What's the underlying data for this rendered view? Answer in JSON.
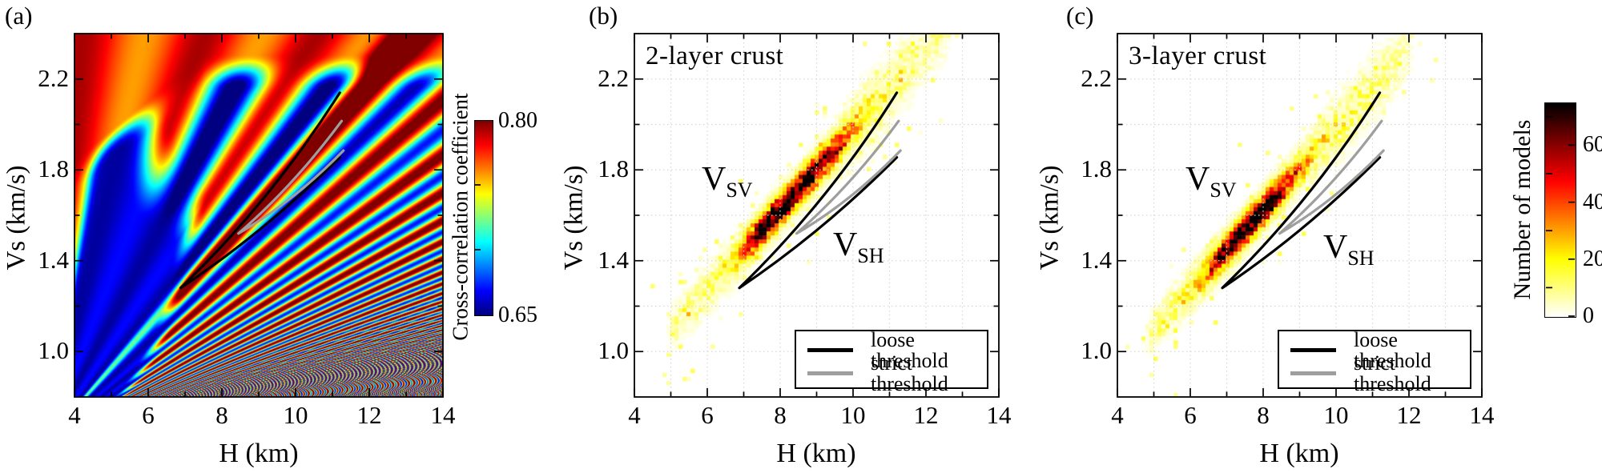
{
  "panels": [
    {
      "id": "a",
      "label": "(a)",
      "title": "",
      "type": "heatmap"
    },
    {
      "id": "b",
      "label": "(b)",
      "title": "2-layer crust",
      "type": "histogram2d"
    },
    {
      "id": "c",
      "label": "(c)",
      "title": "3-layer crust",
      "type": "histogram2d"
    }
  ],
  "axes": {
    "x": {
      "label": "H (km)",
      "range": [
        4,
        14
      ],
      "major_ticks": [
        {
          "value": 4,
          "label": "4"
        },
        {
          "value": 6,
          "label": "6"
        },
        {
          "value": 8,
          "label": "8"
        },
        {
          "value": 10,
          "label": "10"
        },
        {
          "value": 12,
          "label": "12"
        },
        {
          "value": 14,
          "label": "14"
        }
      ],
      "minor_step": 1
    },
    "y": {
      "label": "Vs (km/s)",
      "range": [
        0.8,
        2.4
      ],
      "major_ticks": [
        {
          "value": 2.2,
          "label": "2.2"
        },
        {
          "value": 1.8,
          "label": "1.8"
        },
        {
          "value": 1.4,
          "label": "1.4"
        },
        {
          "value": 1.0,
          "label": "1.0"
        }
      ],
      "minor_step": 0.2
    }
  },
  "colorbars": {
    "cc": {
      "label": "Cross-correlation coefficient",
      "max_label": "0.80",
      "min_label": "0.65",
      "range": [
        0.65,
        0.8
      ],
      "minor_ticks": [
        0.75,
        0.7
      ],
      "colormap": "jet"
    },
    "models": {
      "label": "Number of models",
      "range": [
        0,
        75
      ],
      "ticks": [
        {
          "value": 60,
          "label": "60"
        },
        {
          "value": 40,
          "label": "40"
        },
        {
          "value": 20,
          "label": "20"
        },
        {
          "value": 0,
          "label": "0"
        }
      ],
      "minor_ticks": [
        70,
        50,
        30,
        10
      ],
      "colormap": "hot reversed (white-yellow-red-black)"
    }
  },
  "legend": {
    "entries": [
      {
        "label": "loose threshold",
        "color": "#000000"
      },
      {
        "label": "strict threshold",
        "color": "#9e9e9e"
      }
    ]
  },
  "annotations": {
    "vsv": {
      "main": "V",
      "sub": "SV"
    },
    "vsh": {
      "main": "V",
      "sub": "SH"
    }
  },
  "contours": {
    "loose": {
      "name": "loose threshold",
      "color": "#000000",
      "tip": [
        6.88,
        1.28
      ],
      "upper_end": [
        11.2,
        2.14
      ],
      "upper_ctrl": [
        9.35,
        1.665
      ],
      "lower_end": [
        11.2,
        1.855
      ],
      "lower_ctrl": [
        9.15,
        1.525
      ]
    },
    "strict": {
      "name": "strict threshold",
      "color": "#9e9e9e",
      "tip": [
        8.45,
        1.52
      ],
      "upper_end": [
        11.25,
        2.015
      ],
      "upper_ctrl": [
        9.95,
        1.73
      ],
      "lower_end": [
        11.3,
        1.885
      ],
      "lower_ctrl": [
        9.95,
        1.66
      ]
    }
  },
  "chart_data": [
    {
      "type": "heatmap",
      "panel": "(a)",
      "xlabel": "H (km)",
      "ylabel": "Vs (km/s)",
      "xlim": [
        4,
        14
      ],
      "ylim": [
        0.8,
        2.4
      ],
      "x_ticks": [
        4,
        6,
        8,
        10,
        12,
        14
      ],
      "y_ticks": [
        1.0,
        1.4,
        1.8,
        2.2
      ],
      "value_label": "Cross-correlation coefficient",
      "value_range": [
        0.65,
        0.8
      ],
      "colormap": "jet",
      "pattern_description": "Interference fan: solid high-correlation red field (~0.80) along the top, deep-blue low-correlation lobe (0.65) in the lower left, alternating warm/cool rays fanning out from near (H=3.3, Vs=0.62) that become very finely striped toward the lower right, and a dark-red correlation-maximum ridge of slope ~0.18 (km/s)/km running from about (6.9,1.28) to (11.2,2.1) inside the picked threshold contours.",
      "ridge": {
        "origin": [
          3.3,
          0.62
        ],
        "slope": 0.183
      },
      "contours": [
        {
          "name": "loose threshold",
          "color": "black",
          "tip": [
            6.88,
            1.28
          ],
          "upper_end": [
            11.2,
            2.14
          ],
          "lower_end": [
            11.2,
            1.855
          ]
        },
        {
          "name": "strict threshold",
          "color": "gray",
          "tip": [
            8.45,
            1.52
          ],
          "upper_end": [
            11.25,
            2.015
          ],
          "lower_end": [
            11.3,
            1.885
          ]
        }
      ]
    },
    {
      "type": "histogram2d",
      "panel": "(b)",
      "title": "2-layer crust",
      "xlabel": "H (km)",
      "ylabel": "Vs (km/s)",
      "xlim": [
        4,
        14
      ],
      "ylim": [
        0.8,
        2.4
      ],
      "count_label": "Number of models",
      "count_range": [
        0,
        75
      ],
      "band": {
        "slope": 0.177,
        "intercept": 0.208,
        "h_extent": [
          4.75,
          12.35
        ],
        "vs_sigma": 0.06
      },
      "hotspots": [
        {
          "h": 8.75,
          "vs": 1.76,
          "peak_count": 70,
          "h_sigma": 0.8
        },
        {
          "h": 7.55,
          "vs": 1.55,
          "peak_count": 52,
          "h_sigma": 0.45
        }
      ],
      "labels": [
        {
          "text": "V_SV",
          "h": 6.4,
          "vs": 1.73
        },
        {
          "text": "V_SH",
          "h": 10.0,
          "vs": 1.44
        }
      ],
      "legend": [
        "loose threshold",
        "strict threshold"
      ]
    },
    {
      "type": "histogram2d",
      "panel": "(c)",
      "title": "3-layer crust",
      "xlabel": "H (km)",
      "ylabel": "Vs (km/s)",
      "xlim": [
        4,
        14
      ],
      "ylim": [
        0.8,
        2.4
      ],
      "count_label": "Number of models",
      "count_range": [
        0,
        75
      ],
      "band": {
        "slope": 0.177,
        "intercept": 0.208,
        "h_extent": [
          4.6,
          11.75
        ],
        "vs_sigma": 0.06
      },
      "hotspots": [
        {
          "h": 7.35,
          "vs": 1.51,
          "peak_count": 74,
          "h_sigma": 0.62
        },
        {
          "h": 8.35,
          "vs": 1.69,
          "peak_count": 42,
          "h_sigma": 0.5
        }
      ],
      "labels": [
        {
          "text": "V_SV",
          "h": 6.4,
          "vs": 1.73
        },
        {
          "text": "V_SH",
          "h": 10.3,
          "vs": 1.45
        }
      ],
      "legend": [
        "loose threshold",
        "strict threshold"
      ]
    }
  ]
}
